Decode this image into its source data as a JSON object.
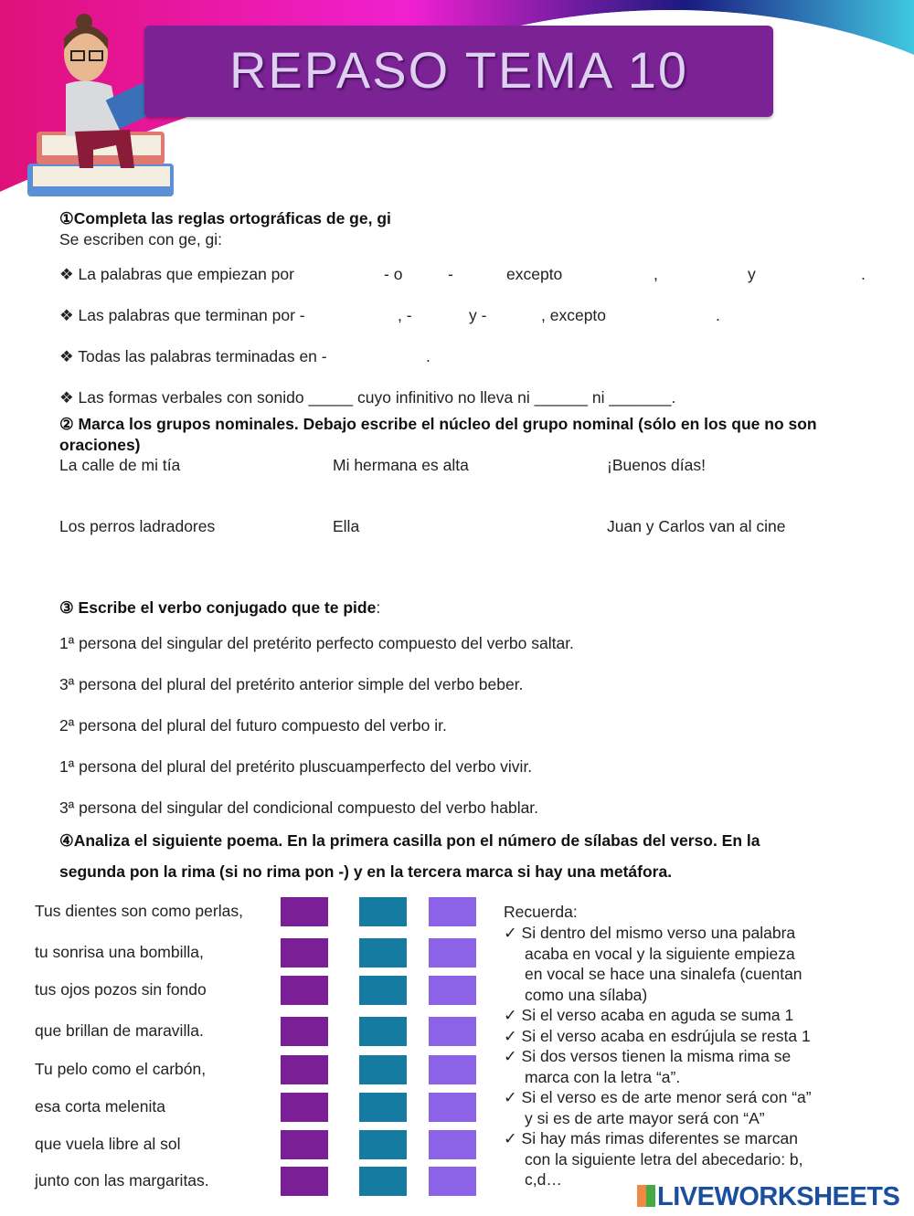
{
  "header": {
    "title": "REPASO TEMA 10"
  },
  "colors": {
    "banner": "#7b2394",
    "syllable_box": "#7a1f96",
    "rhyme_box": "#157ba0",
    "metaphor_box": "#8c63e6"
  },
  "section1": {
    "title": "①Completa las reglas ortográficas de ge, gi",
    "subtitle": "Se escriben con ge, gi:",
    "rule1": [
      "❖ La palabras que empiezan por",
      "- o",
      "-",
      "excepto",
      ",",
      "y",
      "."
    ],
    "rule2": [
      "❖ Las palabras que terminan por -",
      ", -",
      "y -",
      ", excepto",
      "."
    ],
    "rule3": [
      "❖ Todas las palabras terminadas en -",
      "."
    ],
    "rule4": "❖ Las formas verbales con sonido _____ cuyo infinitivo no lleva ni ______ ni _______."
  },
  "section2": {
    "title": "② Marca los grupos nominales. Debajo escribe el núcleo del grupo nominal (sólo en los que no son oraciones)",
    "items": [
      "La calle de mi tía",
      "Mi hermana es alta",
      "¡Buenos días!",
      "Los perros ladradores",
      "Ella",
      "Juan y Carlos van al cine"
    ]
  },
  "section3": {
    "title": "③ Escribe el verbo conjugado que te pide",
    "colon": ":",
    "items": [
      "1ª persona del singular del pretérito perfecto compuesto del verbo saltar.",
      "3ª persona del plural del pretérito anterior simple del verbo beber.",
      "2ª persona del plural del futuro compuesto del verbo ir.",
      "1ª persona del plural del pretérito pluscuamperfecto del verbo vivir.",
      "3ª persona del singular del condicional compuesto del verbo hablar."
    ]
  },
  "section4": {
    "title_line1": "④Analiza el siguiente poema. En la primera casilla pon el número de sílabas del verso. En la",
    "title_line2": "segunda pon la rima (si no rima pon -) y en la tercera marca si hay una metáfora.",
    "verses": [
      "Tus dientes son como perlas,",
      "tu sonrisa una bombilla,",
      "tus ojos pozos sin fondo",
      "que brillan de maravilla.",
      "Tu pelo como el carbón,",
      "esa corta melenita",
      "que vuela libre al sol",
      "junto con las margaritas."
    ],
    "reminder_title": "Recuerda:",
    "reminder_lines": [
      "✓ Si dentro del mismo verso una palabra",
      "acaba en vocal y la siguiente empieza",
      "en vocal se hace una sinalefa (cuentan",
      "como una sílaba)",
      "✓ Si el verso acaba en aguda se suma 1",
      "✓ Si el verso acaba en esdrújula se resta 1",
      "✓ Si dos versos tienen la misma rima se",
      "marca con la letra “a”.",
      "✓ Si el verso es de arte menor será con “a”",
      "y si es de arte mayor será con “A”",
      "✓ Si hay más rimas diferentes se marcan",
      "con la siguiente letra del abecedario: b,",
      "c,d…"
    ]
  },
  "footer": {
    "logo": "LIVEWORKSHEETS"
  }
}
